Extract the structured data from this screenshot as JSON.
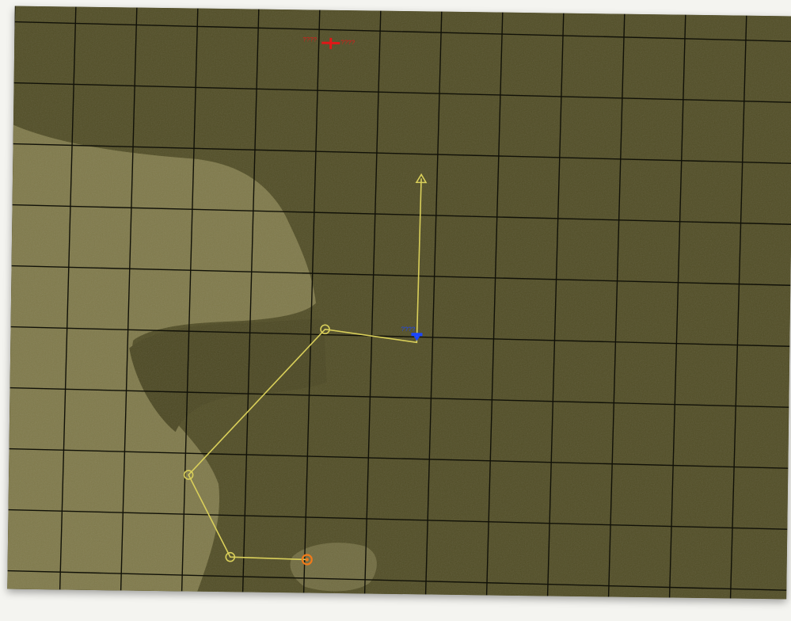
{
  "map": {
    "terrain_colors": {
      "dark": "#4f4b23",
      "light": "#7e7848",
      "shadow": "#3f3b1c"
    },
    "grid_color": "#111108",
    "route_color": "#d9cf5a"
  },
  "units": {
    "enemy": {
      "label": "????",
      "color": "#e01818",
      "icon": "red-cross-marker-icon"
    },
    "friendly": {
      "label": "????",
      "color": "#1a46ff",
      "icon": "blue-unit-marker-icon"
    }
  },
  "route": {
    "waypoint_icon": "circle-waypoint-icon",
    "start_icon": "triangle-start-icon",
    "active_icon": "orange-active-waypoint-icon",
    "active_color": "#f07a1a"
  }
}
